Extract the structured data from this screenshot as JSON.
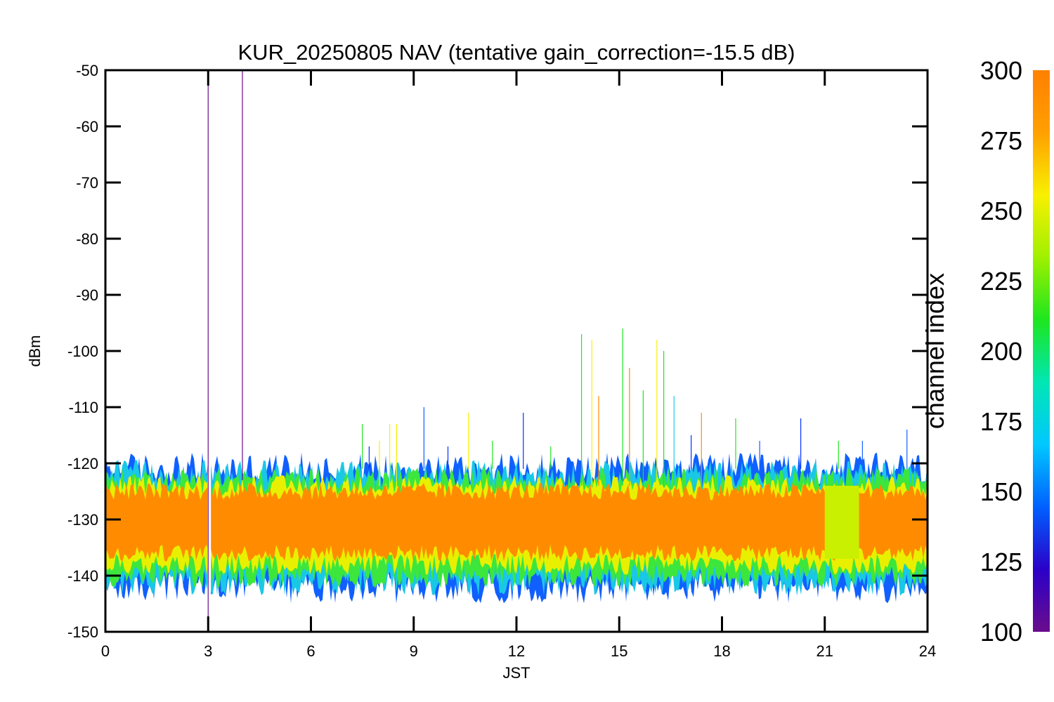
{
  "chart_data": {
    "type": "line",
    "title": "KUR_20250805 NAV (tentative gain_correction=-15.5 dB)",
    "xlabel": "JST",
    "ylabel": "dBm",
    "xlim": [
      0,
      24
    ],
    "ylim": [
      -150,
      -50
    ],
    "xticks": [
      0,
      3,
      6,
      9,
      12,
      15,
      18,
      21,
      24
    ],
    "xtick_labels": [
      "0",
      "3",
      "6",
      "9",
      "12",
      "15",
      "18",
      "21",
      "24"
    ],
    "yticks": [
      -50,
      -60,
      -70,
      -80,
      -90,
      -100,
      -110,
      -120,
      -130,
      -140,
      -150
    ],
    "ytick_labels": [
      "-50",
      "-60",
      "-70",
      "-80",
      "-90",
      "-100",
      "-110",
      "-120",
      "-130",
      "-140",
      "-150"
    ],
    "colorbar": {
      "label": "channel index",
      "range": [
        100,
        300
      ],
      "ticks": [
        100,
        125,
        150,
        175,
        200,
        225,
        250,
        275,
        300
      ],
      "tick_labels": [
        "100",
        "125",
        "150",
        "175",
        "200",
        "225",
        "250",
        "275",
        "300"
      ],
      "colormap": [
        "#6a0d8c",
        "#2b00c8",
        "#0060ff",
        "#00c8ff",
        "#00e6b4",
        "#1ee61e",
        "#a0f000",
        "#f8f000",
        "#ffa000",
        "#ff8000"
      ]
    },
    "bands": [
      {
        "name": "outer low",
        "channel_index": 150,
        "color": "#1060ff",
        "x_range": [
          0,
          24
        ],
        "y_range": [
          -142,
          -121
        ]
      },
      {
        "name": "outer",
        "channel_index": 185,
        "color": "#19c8e6",
        "x_range": [
          0,
          24
        ],
        "y_range": [
          -141,
          -122
        ]
      },
      {
        "name": "middle",
        "channel_index": 230,
        "color": "#3ce63c",
        "x_range": [
          0,
          24
        ],
        "y_range": [
          -140,
          -123
        ]
      },
      {
        "name": "inner",
        "channel_index": 270,
        "color": "#e8f000",
        "x_range": [
          0,
          24
        ],
        "y_range": [
          -138,
          -124
        ]
      },
      {
        "name": "core",
        "channel_index": 300,
        "color": "#ff8c00",
        "x_range": [
          0,
          24
        ],
        "y_range": [
          -136,
          -125
        ]
      }
    ],
    "anomaly_band": {
      "x_range": [
        21.0,
        22.0
      ],
      "y_range": [
        -137,
        -124
      ],
      "color": "#c8f000"
    },
    "spikes": [
      {
        "x": 3.0,
        "top": -50,
        "bottom": -150,
        "color": "#6a0d8c"
      },
      {
        "x": 4.0,
        "top": -50,
        "bottom": -123,
        "color": "#6a0d8c"
      },
      {
        "x": 7.5,
        "top": -113,
        "bottom": -121,
        "color": "#1ee61e"
      },
      {
        "x": 7.7,
        "top": -117,
        "bottom": -121,
        "color": "#0030ff"
      },
      {
        "x": 8.0,
        "top": -116,
        "bottom": -124,
        "color": "#f8f000"
      },
      {
        "x": 8.3,
        "top": -113,
        "bottom": -124,
        "color": "#f8f000"
      },
      {
        "x": 8.5,
        "top": -113,
        "bottom": -124,
        "color": "#f8f000"
      },
      {
        "x": 9.3,
        "top": -110,
        "bottom": -121,
        "color": "#1060ff"
      },
      {
        "x": 10.0,
        "top": -117,
        "bottom": -121,
        "color": "#0030ff"
      },
      {
        "x": 10.6,
        "top": -111,
        "bottom": -121,
        "color": "#f8f000"
      },
      {
        "x": 11.3,
        "top": -116,
        "bottom": -121,
        "color": "#1ee61e"
      },
      {
        "x": 12.2,
        "top": -111,
        "bottom": -121,
        "color": "#0030ff"
      },
      {
        "x": 13.0,
        "top": -117,
        "bottom": -121,
        "color": "#1ee61e"
      },
      {
        "x": 13.9,
        "top": -97,
        "bottom": -124,
        "color": "#1ee61e"
      },
      {
        "x": 14.2,
        "top": -98,
        "bottom": -124,
        "color": "#f8f000"
      },
      {
        "x": 14.4,
        "top": -108,
        "bottom": -124,
        "color": "#ff8c00"
      },
      {
        "x": 15.1,
        "top": -96,
        "bottom": -124,
        "color": "#1ee61e"
      },
      {
        "x": 15.3,
        "top": -103,
        "bottom": -124,
        "color": "#ff8c00"
      },
      {
        "x": 15.7,
        "top": -107,
        "bottom": -124,
        "color": "#1ee61e"
      },
      {
        "x": 16.1,
        "top": -98,
        "bottom": -124,
        "color": "#f8f000"
      },
      {
        "x": 16.3,
        "top": -100,
        "bottom": -124,
        "color": "#1ee61e"
      },
      {
        "x": 16.6,
        "top": -108,
        "bottom": -124,
        "color": "#19c8e6"
      },
      {
        "x": 17.1,
        "top": -115,
        "bottom": -121,
        "color": "#0030ff"
      },
      {
        "x": 17.4,
        "top": -111,
        "bottom": -124,
        "color": "#ff8c00"
      },
      {
        "x": 18.4,
        "top": -112,
        "bottom": -121,
        "color": "#1ee61e"
      },
      {
        "x": 19.1,
        "top": -116,
        "bottom": -121,
        "color": "#1060ff"
      },
      {
        "x": 20.3,
        "top": -112,
        "bottom": -121,
        "color": "#0030ff"
      },
      {
        "x": 21.4,
        "top": -116,
        "bottom": -121,
        "color": "#1ee61e"
      },
      {
        "x": 22.1,
        "top": -116,
        "bottom": -121,
        "color": "#1060ff"
      },
      {
        "x": 23.4,
        "top": -114,
        "bottom": -121,
        "color": "#1060ff"
      }
    ],
    "gap": {
      "x_range": [
        2.98,
        3.08
      ],
      "color": "#ffffff"
    }
  }
}
